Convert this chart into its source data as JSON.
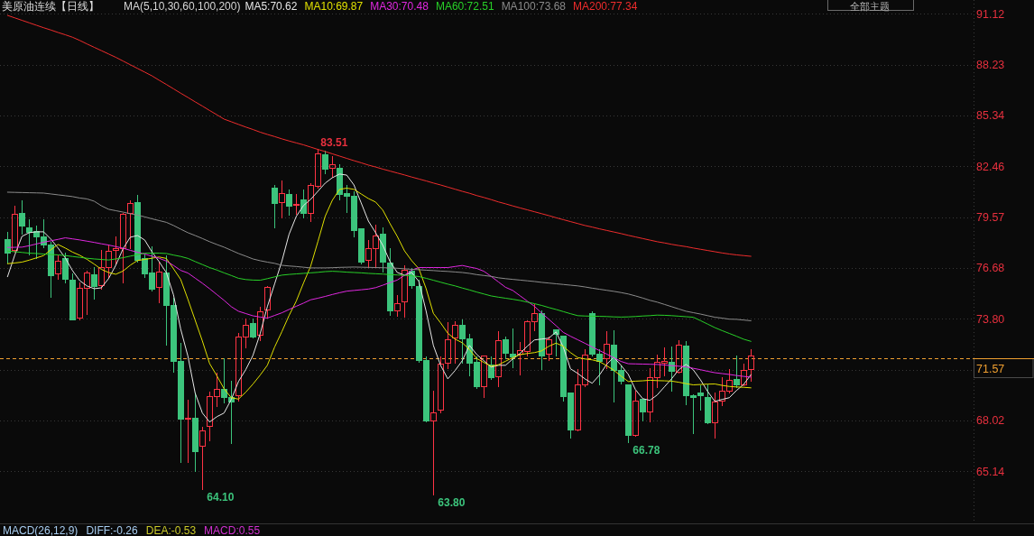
{
  "chart_data": {
    "type": "candlestick",
    "title": "美原油连续【日线】",
    "categories": [
      null,
      null,
      null,
      null,
      null,
      null,
      null,
      null,
      null,
      null,
      null,
      null,
      null,
      null,
      null,
      null,
      null,
      null,
      null,
      null,
      null,
      null,
      null,
      null,
      null,
      null,
      null,
      null,
      null,
      null,
      null,
      null,
      null,
      null,
      null,
      null,
      null,
      null,
      null,
      null,
      null,
      null,
      null,
      null,
      null,
      null,
      null,
      null,
      null,
      null,
      null,
      null,
      null,
      null,
      null,
      null,
      null,
      null,
      null,
      null,
      null,
      null,
      null,
      null,
      null,
      null,
      null,
      null,
      null,
      null,
      null,
      null,
      null,
      null,
      null,
      null,
      null,
      null,
      null,
      null,
      null,
      null,
      null,
      null,
      null,
      null,
      null,
      null,
      null,
      null,
      null,
      null,
      null,
      null,
      null,
      null,
      null,
      null,
      null,
      null,
      null,
      null,
      null,
      null
    ],
    "ohlc": [
      [
        78.31,
        78.76,
        77.0,
        77.56
      ],
      [
        77.68,
        80.27,
        77.6,
        79.73
      ],
      [
        79.78,
        80.58,
        78.62,
        79.1
      ],
      [
        78.96,
        79.51,
        77.42,
        78.74
      ],
      [
        78.76,
        79.13,
        77.25,
        78.45
      ],
      [
        78.45,
        79.47,
        77.85,
        77.99
      ],
      [
        77.99,
        78.19,
        75.04,
        76.28
      ],
      [
        76.35,
        77.42,
        76.06,
        77.08
      ],
      [
        77.25,
        77.6,
        75.85,
        76.06
      ],
      [
        76.01,
        76.4,
        73.74,
        73.77
      ],
      [
        73.84,
        75.89,
        73.77,
        75.53
      ],
      [
        75.53,
        76.57,
        74.06,
        76.4
      ],
      [
        76.32,
        76.78,
        74.95,
        75.67
      ],
      [
        75.68,
        77.77,
        75.51,
        76.73
      ],
      [
        76.74,
        78.07,
        76.09,
        77.65
      ],
      [
        77.68,
        78.52,
        76.91,
        77.8
      ],
      [
        77.8,
        79.85,
        75.84,
        79.73
      ],
      [
        79.78,
        80.58,
        77.8,
        80.34
      ],
      [
        80.41,
        80.87,
        77.05,
        77.12
      ],
      [
        77.25,
        77.51,
        76.14,
        76.37
      ],
      [
        76.43,
        77.97,
        75.41,
        75.51
      ],
      [
        75.58,
        77.08,
        74.75,
        76.49
      ],
      [
        76.4,
        77.42,
        72.31,
        74.59
      ],
      [
        74.59,
        75.04,
        70.77,
        71.42
      ],
      [
        71.42,
        72.48,
        65.65,
        68.14
      ],
      [
        68.11,
        69.27,
        65.68,
        68.18
      ],
      [
        68.18,
        69.63,
        65.17,
        66.25
      ],
      [
        66.57,
        67.7,
        64.1,
        67.44
      ],
      [
        67.7,
        69.69,
        66.88,
        69.4
      ],
      [
        69.4,
        70.77,
        68.86,
        69.8
      ],
      [
        69.8,
        71.62,
        69.06,
        69.35
      ],
      [
        69.35,
        70.34,
        66.76,
        69.11
      ],
      [
        69.44,
        73.04,
        69.15,
        72.77
      ],
      [
        72.77,
        73.88,
        72.19,
        73.45
      ],
      [
        73.55,
        73.84,
        72.72,
        72.77
      ],
      [
        72.89,
        74.52,
        72.56,
        74.23
      ],
      [
        74.3,
        75.72,
        73.84,
        75.58
      ],
      [
        81.26,
        81.43,
        78.96,
        80.36
      ],
      [
        80.43,
        81.72,
        79.56,
        80.91
      ],
      [
        80.87,
        81.18,
        79.68,
        80.21
      ],
      [
        80.27,
        80.92,
        79.73,
        80.33
      ],
      [
        80.56,
        81.18,
        79.56,
        79.81
      ],
      [
        79.78,
        81.55,
        79.35,
        81.37
      ],
      [
        81.32,
        83.51,
        81.26,
        83.18
      ],
      [
        83.11,
        83.4,
        82.08,
        82.32
      ],
      [
        82.34,
        83.09,
        81.86,
        82.59
      ],
      [
        82.34,
        82.63,
        80.58,
        80.89
      ],
      [
        80.92,
        81.43,
        79.85,
        80.79
      ],
      [
        80.8,
        81.09,
        78.45,
        78.84
      ],
      [
        78.93,
        78.96,
        76.95,
        77.03
      ],
      [
        77.12,
        78.33,
        76.71,
        77.82
      ],
      [
        77.82,
        79.18,
        76.71,
        78.53
      ],
      [
        78.62,
        79.05,
        76.49,
        77.03
      ],
      [
        76.96,
        77.85,
        74.01,
        74.28
      ],
      [
        74.28,
        75.21,
        73.98,
        74.69
      ],
      [
        74.76,
        76.88,
        73.93,
        76.57
      ],
      [
        76.52,
        76.74,
        75.55,
        75.68
      ],
      [
        75.63,
        76.06,
        71.37,
        71.45
      ],
      [
        71.45,
        71.71,
        67.95,
        68.04
      ],
      [
        68.04,
        69.75,
        63.8,
        68.47
      ],
      [
        68.62,
        71.71,
        68.47,
        71.25
      ],
      [
        71.28,
        73.64,
        70.99,
        72.65
      ],
      [
        72.73,
        73.7,
        71.28,
        73.45
      ],
      [
        73.45,
        73.81,
        71.28,
        72.68
      ],
      [
        72.68,
        72.99,
        70.6,
        71.28
      ],
      [
        71.37,
        71.71,
        69.88,
        69.97
      ],
      [
        69.98,
        71.74,
        69.37,
        71.69
      ],
      [
        71.2,
        71.71,
        70.39,
        70.46
      ],
      [
        70.51,
        73.16,
        69.98,
        72.56
      ],
      [
        72.63,
        72.85,
        71.54,
        71.84
      ],
      [
        71.8,
        73.28,
        71.03,
        71.66
      ],
      [
        71.8,
        72.51,
        70.64,
        72.0
      ],
      [
        71.97,
        73.76,
        71.71,
        73.64
      ],
      [
        73.67,
        74.66,
        73.13,
        74.1
      ],
      [
        74.1,
        74.32,
        70.94,
        71.71
      ],
      [
        71.8,
        72.85,
        71.45,
        72.65
      ],
      [
        73.2,
        73.25,
        71.71,
        72.91
      ],
      [
        72.82,
        72.85,
        69.15,
        69.41
      ],
      [
        69.58,
        69.61,
        67.02,
        67.48
      ],
      [
        67.48,
        70.98,
        67.43,
        70.05
      ],
      [
        70.09,
        72.1,
        69.97,
        71.76
      ],
      [
        74.1,
        74.27,
        71.71,
        71.83
      ],
      [
        71.83,
        72.14,
        70.09,
        71.4
      ],
      [
        71.54,
        73.13,
        70.98,
        72.36
      ],
      [
        72.31,
        73.2,
        69.07,
        70.86
      ],
      [
        70.86,
        71.2,
        70.12,
        70.29
      ],
      [
        70.04,
        70.14,
        66.78,
        67.22
      ],
      [
        67.19,
        69.75,
        67.15,
        69.15
      ],
      [
        69.24,
        69.27,
        68.04,
        68.55
      ],
      [
        68.52,
        71.03,
        67.96,
        70.46
      ],
      [
        70.46,
        71.8,
        69.92,
        71.37
      ],
      [
        71.32,
        72.22,
        70.57,
        71.4
      ],
      [
        71.37,
        72.27,
        69.71,
        70.81
      ],
      [
        70.77,
        72.62,
        70.74,
        72.31
      ],
      [
        72.27,
        72.56,
        68.93,
        69.46
      ],
      [
        69.44,
        69.54,
        67.32,
        69.37
      ],
      [
        69.58,
        70.09,
        68.64,
        69.44
      ],
      [
        69.34,
        70.12,
        67.87,
        67.9
      ],
      [
        67.9,
        69.66,
        67.02,
        69.07
      ],
      [
        69.15,
        70.52,
        68.89,
        69.71
      ],
      [
        69.71,
        70.98,
        69.58,
        70.31
      ],
      [
        70.35,
        71.75,
        69.92,
        70.04
      ],
      [
        70.04,
        71.32,
        70.0,
        70.89
      ],
      [
        70.94,
        72.14,
        70.29,
        71.71
      ]
    ],
    "colors": [
      "#3cc47c",
      "#ff3344",
      "#3cc47c",
      "#3cc47c",
      "#3cc47c",
      "#3cc47c",
      "#3cc47c",
      "#ff3344",
      "#3cc47c",
      "#3cc47c",
      "#ff3344",
      "#ff3344",
      "#3cc47c",
      "#ff3344",
      "#ff3344",
      "#ff3344",
      "#ff3344",
      "#ff3344",
      "#3cc47c",
      "#3cc47c",
      "#3cc47c",
      "#ff3344",
      "#3cc47c",
      "#3cc47c",
      "#3cc47c",
      "#ff3344",
      "#3cc47c",
      "#ff3344",
      "#ff3344",
      "#ff3344",
      "#3cc47c",
      "#3cc47c",
      "#ff3344",
      "#ff3344",
      "#3cc47c",
      "#ff3344",
      "#ff3344",
      "#3cc47c",
      "#ff3344",
      "#3cc47c",
      "#ff3344",
      "#3cc47c",
      "#ff3344",
      "#ff3344",
      "#3cc47c",
      "#ff3344",
      "#3cc47c",
      "#3cc47c",
      "#3cc47c",
      "#3cc47c",
      "#ff3344",
      "#ff3344",
      "#3cc47c",
      "#3cc47c",
      "#ff3344",
      "#ff3344",
      "#3cc47c",
      "#3cc47c",
      "#3cc47c",
      "#ff3344",
      "#ff3344",
      "#ff3344",
      "#ff3344",
      "#3cc47c",
      "#3cc47c",
      "#3cc47c",
      "#ff3344",
      "#3cc47c",
      "#ff3344",
      "#3cc47c",
      "#3cc47c",
      "#ff3344",
      "#ff3344",
      "#ff3344",
      "#3cc47c",
      "#ff3344",
      "#3cc47c",
      "#3cc47c",
      "#3cc47c",
      "#ff3344",
      "#ff3344",
      "#3cc47c",
      "#3cc47c",
      "#ff3344",
      "#3cc47c",
      "#3cc47c",
      "#3cc47c",
      "#ff3344",
      "#3cc47c",
      "#ff3344",
      "#ff3344",
      "#ff3344",
      "#3cc47c",
      "#ff3344",
      "#3cc47c",
      "#3cc47c",
      "#3cc47c",
      "#3cc47c",
      "#ff3344",
      "#ff3344",
      "#ff3344",
      "#3cc47c",
      "#ff3344",
      "#ff3344"
    ],
    "series": [
      {
        "name": "MA5:70.62",
        "type": "line",
        "color": "#e6e6e6",
        "values": [
          76.18,
          77.4,
          78.47,
          78.68,
          78.73,
          78.73,
          78.32,
          77.81,
          77.25,
          76.53,
          75.96,
          75.66,
          75.5,
          75.55,
          76.07,
          76.83,
          77.76,
          78.42,
          78.52,
          78.27,
          77.6,
          77.04,
          76.42,
          75.15,
          73.2,
          71.66,
          69.57,
          68.44,
          67.93,
          68.23,
          68.44,
          69.21,
          70.23,
          70.9,
          71.71,
          72.94,
          74.48,
          75.76,
          77.04,
          78.58,
          79.6,
          80.22,
          80.57,
          81.03,
          81.49,
          81.8,
          82.01,
          81.95,
          81.39,
          80.37,
          79.34,
          78.68,
          77.96,
          77.04,
          76.42,
          76.27,
          76.42,
          75.91,
          74.22,
          72.28,
          71.15,
          70.38,
          70.85,
          71.41,
          72.28,
          71.77,
          71.41,
          71.05,
          71.15,
          71.15,
          71.51,
          71.82,
          72.23,
          72.59,
          72.64,
          72.69,
          73.05,
          72.18,
          70.95,
          70.69,
          70.38,
          70.13,
          70.59,
          71.2,
          71.61,
          71.15,
          70.64,
          69.77,
          69.26,
          69.16,
          69.46,
          69.92,
          70.38,
          70.9,
          71.2,
          70.9,
          70.33,
          69.67,
          69.1,
          69.21,
          69.31,
          69.72,
          70.07,
          70.62
        ]
      },
      {
        "name": "MA10:69.87",
        "type": "line",
        "color": "#e0e000",
        "values": [
          76.92,
          76.96,
          77.01,
          77.12,
          77.25,
          77.38,
          77.71,
          78.01,
          77.81,
          77.58,
          77.4,
          77.17,
          76.9,
          76.6,
          76.42,
          76.32,
          76.5,
          76.83,
          77.1,
          77.16,
          77.23,
          77.3,
          77.22,
          76.63,
          76.02,
          74.89,
          73.71,
          72.53,
          71.25,
          70.56,
          69.82,
          69.31,
          69.23,
          69.62,
          70.08,
          70.59,
          71.15,
          72.18,
          73.05,
          73.97,
          74.79,
          75.81,
          76.78,
          78.17,
          79.6,
          80.52,
          81.14,
          81.21,
          81.14,
          80.88,
          80.62,
          80.42,
          79.96,
          79.19,
          78.47,
          77.65,
          77.09,
          76.63,
          75.5,
          74.1,
          73.56,
          72.97,
          72.64,
          72.43,
          72.05,
          71.54,
          71.31,
          71.1,
          71.18,
          71.38,
          71.59,
          71.75,
          71.82,
          71.87,
          71.97,
          72.23,
          72.41,
          72.23,
          71.87,
          71.59,
          71.51,
          71.46,
          71.36,
          71.13,
          70.87,
          70.54,
          70.23,
          70.25,
          70.27,
          70.3,
          70.28,
          70.27,
          70.25,
          70.19,
          70.11,
          70.04,
          70.06,
          70.08,
          70.09,
          70.01,
          69.95,
          69.92,
          69.9,
          69.87
        ]
      },
      {
        "name": "MA30:70.48",
        "type": "line",
        "color": "#e028e0",
        "values": [
          77.84,
          77.85,
          77.86,
          77.94,
          78.04,
          78.14,
          78.22,
          78.3,
          78.39,
          78.33,
          78.27,
          78.2,
          78.13,
          78.05,
          77.98,
          77.89,
          77.8,
          77.68,
          77.57,
          77.47,
          77.35,
          77.23,
          77.07,
          76.82,
          76.54,
          76.39,
          76.1,
          75.81,
          75.5,
          75.17,
          74.84,
          74.48,
          74.22,
          74.09,
          73.96,
          73.89,
          73.83,
          73.98,
          74.13,
          74.32,
          74.5,
          74.68,
          74.87,
          74.96,
          75.06,
          75.17,
          75.27,
          75.36,
          75.4,
          75.44,
          75.48,
          75.56,
          75.7,
          75.85,
          75.99,
          76.26,
          76.56,
          76.7,
          76.7,
          76.7,
          76.7,
          76.7,
          76.76,
          76.82,
          76.73,
          76.65,
          76.49,
          76.2,
          75.89,
          75.58,
          75.4,
          75.1,
          74.8,
          74.5,
          74.12,
          73.76,
          73.4,
          73.02,
          72.8,
          72.6,
          72.4,
          72.19,
          71.99,
          71.79,
          71.58,
          71.37,
          71.24,
          71.23,
          71.22,
          71.21,
          71.2,
          71.17,
          71.13,
          71.1,
          71.06,
          70.98,
          70.9,
          70.81,
          70.73,
          70.68,
          70.63,
          70.57,
          70.52,
          70.48
        ]
      },
      {
        "name": "MA60:72.51",
        "type": "line",
        "color": "#28d028",
        "values": [
          77.64,
          77.6,
          77.56,
          77.52,
          77.5,
          77.47,
          77.44,
          77.42,
          77.38,
          77.33,
          77.28,
          77.23,
          77.19,
          77.16,
          77.13,
          77.19,
          77.26,
          77.35,
          77.43,
          77.52,
          77.52,
          77.52,
          77.5,
          77.41,
          77.33,
          77.22,
          77.04,
          76.87,
          76.7,
          76.56,
          76.4,
          76.25,
          76.09,
          76.02,
          75.99,
          75.98,
          76.07,
          76.17,
          76.27,
          76.31,
          76.34,
          76.37,
          76.4,
          76.43,
          76.47,
          76.49,
          76.47,
          76.44,
          76.42,
          76.4,
          76.37,
          76.35,
          76.33,
          76.3,
          76.28,
          76.26,
          76.23,
          76.19,
          76.09,
          75.98,
          75.87,
          75.76,
          75.66,
          75.54,
          75.43,
          75.31,
          75.2,
          75.09,
          75.02,
          74.96,
          74.9,
          74.83,
          74.74,
          74.65,
          74.55,
          74.43,
          74.32,
          74.2,
          74.08,
          73.97,
          73.95,
          73.94,
          73.93,
          73.92,
          73.9,
          73.89,
          73.9,
          73.92,
          73.95,
          73.97,
          74.0,
          73.99,
          73.97,
          73.94,
          73.91,
          73.88,
          73.69,
          73.49,
          73.29,
          73.12,
          72.96,
          72.8,
          72.63,
          72.51
        ]
      },
      {
        "name": "MA100:73.68",
        "type": "line",
        "color": "#8a8a8a",
        "values": [
          80.98,
          80.97,
          80.96,
          80.95,
          80.94,
          80.93,
          80.88,
          80.83,
          80.78,
          80.73,
          80.65,
          80.6,
          80.47,
          80.21,
          80.01,
          79.93,
          79.85,
          79.76,
          79.68,
          79.58,
          79.47,
          79.37,
          79.27,
          79.09,
          78.88,
          78.68,
          78.52,
          78.35,
          78.17,
          78.01,
          77.86,
          77.68,
          77.5,
          77.35,
          77.19,
          77.09,
          77.01,
          76.94,
          76.83,
          76.79,
          76.76,
          76.72,
          76.68,
          76.68,
          76.68,
          76.69,
          76.71,
          76.72,
          76.73,
          76.72,
          76.71,
          76.7,
          76.69,
          76.68,
          76.66,
          76.63,
          76.6,
          76.58,
          76.55,
          76.53,
          76.5,
          76.48,
          76.45,
          76.42,
          76.37,
          76.3,
          76.25,
          76.2,
          76.12,
          76.07,
          76.03,
          75.99,
          75.95,
          75.91,
          75.86,
          75.82,
          75.78,
          75.74,
          75.7,
          75.66,
          75.6,
          75.53,
          75.47,
          75.41,
          75.35,
          75.28,
          75.2,
          75.09,
          74.97,
          74.84,
          74.74,
          74.61,
          74.48,
          74.35,
          74.22,
          74.14,
          74.06,
          73.97,
          73.88,
          73.83,
          73.77,
          73.76,
          73.72,
          73.68
        ]
      },
      {
        "name": "MA200:77.34",
        "type": "line",
        "color": "#ee2c2c",
        "values": [
          91.02,
          90.88,
          90.74,
          90.6,
          90.46,
          90.32,
          90.19,
          90.05,
          89.92,
          89.78,
          89.6,
          89.4,
          89.21,
          89.02,
          88.83,
          88.64,
          88.43,
          88.22,
          88.01,
          87.8,
          87.59,
          87.34,
          87.1,
          86.85,
          86.6,
          86.36,
          86.11,
          85.87,
          85.62,
          85.38,
          85.13,
          84.98,
          84.83,
          84.68,
          84.54,
          84.39,
          84.26,
          84.14,
          84.01,
          83.89,
          83.78,
          83.67,
          83.54,
          83.41,
          83.29,
          83.16,
          83.03,
          82.9,
          82.77,
          82.65,
          82.52,
          82.41,
          82.29,
          82.18,
          82.07,
          81.96,
          81.84,
          81.73,
          81.62,
          81.5,
          81.39,
          81.27,
          81.15,
          81.03,
          80.92,
          80.79,
          80.68,
          80.56,
          80.43,
          80.32,
          80.2,
          80.09,
          79.98,
          79.87,
          79.76,
          79.65,
          79.53,
          79.42,
          79.31,
          79.2,
          79.09,
          79.0,
          78.9,
          78.81,
          78.72,
          78.63,
          78.53,
          78.44,
          78.35,
          78.26,
          78.17,
          78.1,
          78.02,
          77.95,
          77.89,
          77.81,
          77.74,
          77.67,
          77.6,
          77.53,
          77.47,
          77.42,
          77.38,
          77.34
        ]
      }
    ],
    "ylim": [
      62.2,
      91.12
    ],
    "yticks": [
      65.14,
      68.02,
      {
        "value": 70.91,
        "label": null
      },
      {
        "value": 73.8,
        "label": "73.80"
      },
      76.68,
      79.57,
      82.46,
      85.34,
      88.23,
      91.12
    ],
    "tick_labels": "y",
    "grid": "y",
    "legend": "top",
    "ref_lines": [
      {
        "axis": "y",
        "value": 71.57,
        "label": "71.57",
        "color": "#f0a030",
        "line_style": "dashed"
      }
    ],
    "annotations": [
      "MA(5,10,30,60,100,200)",
      "全部主题",
      "MACD(26,12,9)",
      "DIFF:-0.26",
      "DEA:-0.53",
      "MACD:0.55",
      "83.51",
      "64.10",
      "63.80",
      "66.78"
    ]
  }
}
